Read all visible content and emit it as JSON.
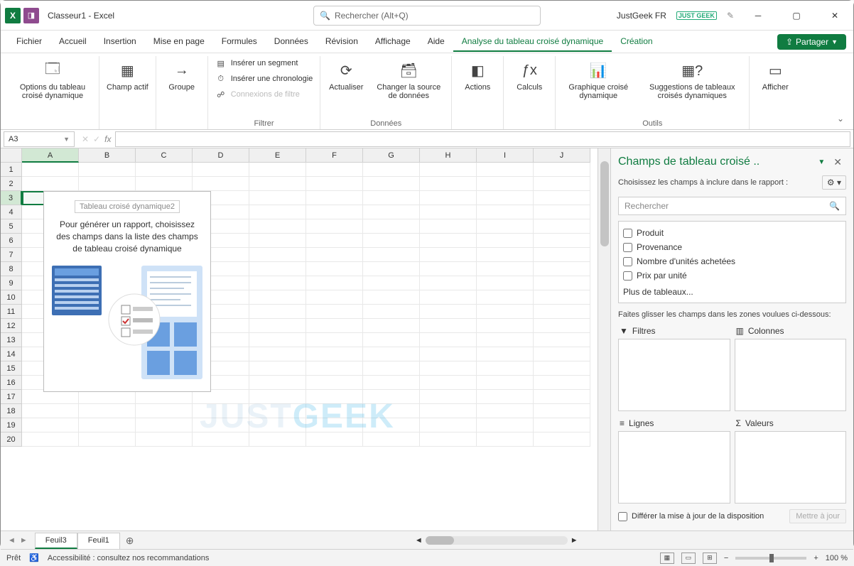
{
  "titlebar": {
    "title": "Classeur1 - Excel",
    "search_placeholder": "Rechercher (Alt+Q)",
    "user": "JustGeek FR",
    "badge": "JUST GEEK"
  },
  "tabs": {
    "items": [
      "Fichier",
      "Accueil",
      "Insertion",
      "Mise en page",
      "Formules",
      "Données",
      "Révision",
      "Affichage",
      "Aide",
      "Analyse du tableau croisé dynamique",
      "Création"
    ],
    "active_index": 9,
    "share": "Partager"
  },
  "ribbon": {
    "options_pivot": "Options du tableau croisé dynamique",
    "active_field": "Champ actif",
    "group": "Groupe",
    "insert_slicer": "Insérer un segment",
    "insert_timeline": "Insérer une chronologie",
    "filter_connections": "Connexions de filtre",
    "filter_group": "Filtrer",
    "refresh": "Actualiser",
    "change_source": "Changer la source de données",
    "data_group": "Données",
    "actions": "Actions",
    "calculations": "Calculs",
    "pivot_chart": "Graphique croisé dynamique",
    "suggested_pivots": "Suggestions de tableaux croisés dynamiques",
    "tools_group": "Outils",
    "show": "Afficher"
  },
  "namebox": {
    "value": "A3"
  },
  "columns": [
    "A",
    "B",
    "C",
    "D",
    "E",
    "F",
    "G",
    "H",
    "I",
    "J"
  ],
  "row_count": 20,
  "selected": {
    "col": 0,
    "row": 2
  },
  "pivot_placeholder": {
    "title": "Tableau croisé dynamique2",
    "text": "Pour générer un rapport, choisissez des champs dans la liste des champs de tableau croisé dynamique"
  },
  "pane": {
    "title": "Champs de tableau croisé ..",
    "subtitle": "Choisissez les champs à inclure dans le rapport :",
    "search_placeholder": "Rechercher",
    "fields": [
      "Produit",
      "Provenance",
      "Nombre d'unités achetées",
      "Prix par unité"
    ],
    "more_tables": "Plus de tableaux...",
    "drag_label": "Faites glisser les champs dans les zones voulues ci-dessous:",
    "zone_filters": "Filtres",
    "zone_columns": "Colonnes",
    "zone_rows": "Lignes",
    "zone_values": "Valeurs",
    "defer": "Différer la mise à jour de la disposition",
    "update_btn": "Mettre à jour"
  },
  "sheet_tabs": {
    "tabs": [
      "Feuil3",
      "Feuil1"
    ],
    "active_index": 0
  },
  "status": {
    "ready": "Prêt",
    "accessibility": "Accessibilité : consultez nos recommandations",
    "zoom": "100 %"
  },
  "colors": {
    "accent": "#107c41",
    "grid": "#e8e8e8",
    "header_bg": "#f0f0f0"
  },
  "watermark": {
    "a": "JUST",
    "b": "GEEK"
  }
}
